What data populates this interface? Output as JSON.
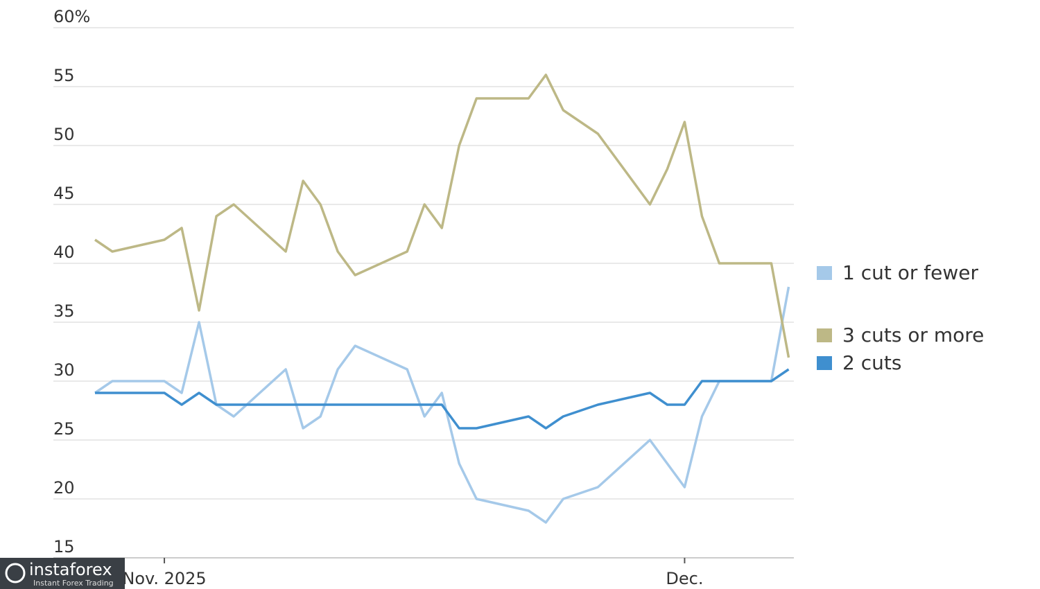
{
  "chart_data": {
    "type": "line",
    "x": [
      -4,
      -3,
      0,
      1,
      2,
      3,
      4,
      7,
      8,
      9,
      10,
      11,
      14,
      15,
      16,
      17,
      18,
      21,
      22,
      23,
      25,
      28,
      29,
      30,
      31,
      32,
      35,
      36
    ],
    "series": [
      {
        "name": "1 cut or fewer",
        "color": "#a5c9e9",
        "values": [
          29,
          30,
          30,
          29,
          35,
          28,
          27,
          31,
          26,
          27,
          31,
          33,
          31,
          27,
          29,
          23,
          20,
          19,
          18,
          20,
          21,
          25,
          23,
          21,
          27,
          30,
          30,
          38
        ]
      },
      {
        "name": "3 cuts or more",
        "color": "#bdb886",
        "values": [
          42,
          41,
          42,
          43,
          36,
          44,
          45,
          41,
          47,
          45,
          41,
          39,
          41,
          45,
          43,
          50,
          54,
          54,
          56,
          53,
          51,
          45,
          48,
          52,
          44,
          40,
          40,
          32
        ]
      },
      {
        "name": "2 cuts",
        "color": "#3f8fcf",
        "values": [
          29,
          29,
          29,
          28,
          29,
          28,
          28,
          28,
          28,
          28,
          28,
          28,
          28,
          28,
          28,
          26,
          26,
          27,
          26,
          27,
          28,
          29,
          28,
          28,
          30,
          30,
          30,
          31
        ]
      }
    ],
    "xlim": [
      -4,
      36.3
    ],
    "xticks": [
      {
        "value": 0,
        "label": "Nov. 2025"
      },
      {
        "value": 30,
        "label": "Dec."
      }
    ],
    "ylim": [
      15,
      60
    ],
    "yticks": [
      15,
      20,
      25,
      30,
      35,
      40,
      45,
      50,
      55,
      {
        "value": 60,
        "label": "60%"
      }
    ],
    "grid": true,
    "legend": "right"
  },
  "watermark": {
    "name": "instaforex",
    "tagline": "Instant Forex Trading"
  }
}
